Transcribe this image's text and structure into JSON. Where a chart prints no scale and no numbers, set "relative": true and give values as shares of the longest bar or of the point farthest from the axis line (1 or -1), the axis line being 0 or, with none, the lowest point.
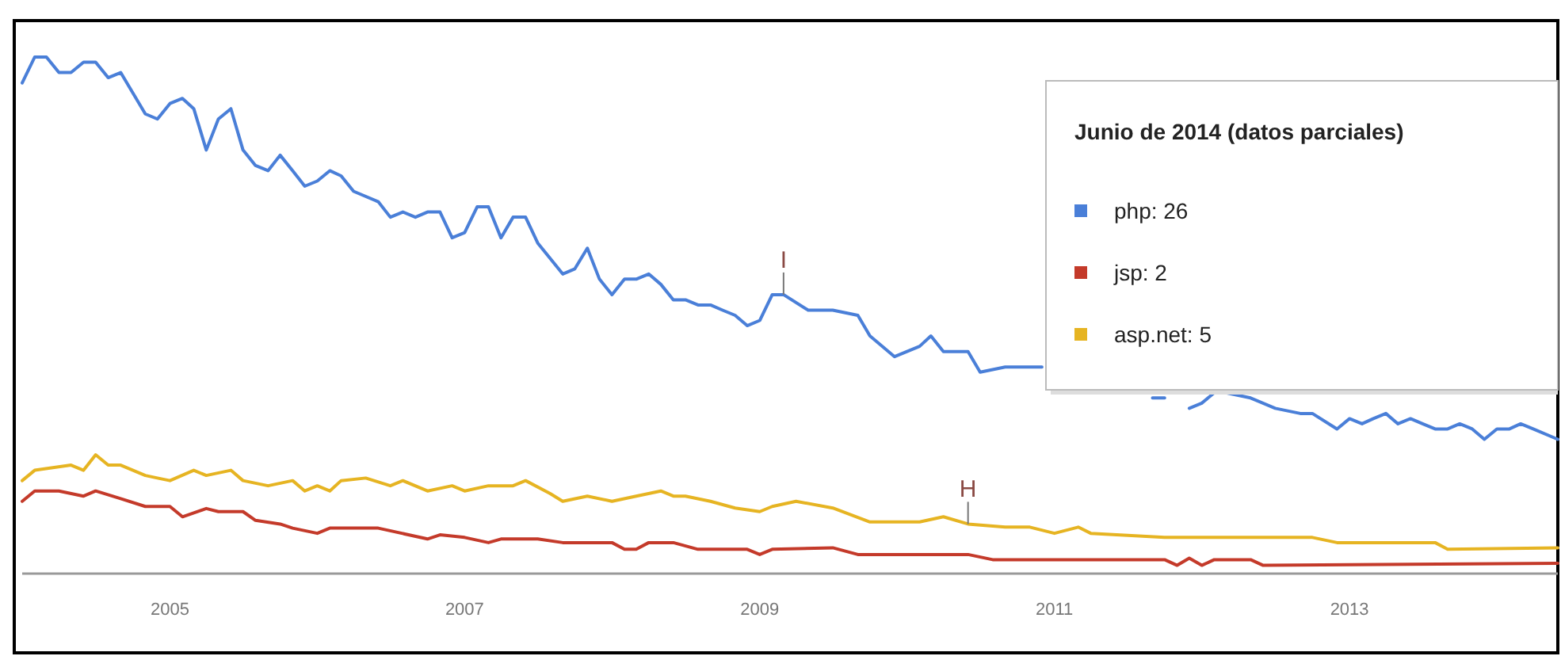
{
  "chart_data": {
    "type": "line",
    "relative": true,
    "legend": "top right",
    "legend_title": "Junio de 2014 (datos parciales)",
    "marker": "none",
    "xlim": [
      "2004-01",
      "2014-06"
    ],
    "xticks": [
      "2005",
      "2007",
      "2009",
      "2011",
      "2013"
    ],
    "series": [
      {
        "name": "php: 26",
        "color": "#4a7fd8",
        "x": [
          "2004-01",
          "2004-02",
          "2004-03",
          "2004-04",
          "2004-05",
          "2004-06",
          "2004-07",
          "2004-08",
          "2004-09",
          "2004-11",
          "2004-12",
          "2005-01",
          "2005-02",
          "2005-03",
          "2005-04",
          "2005-05",
          "2005-06",
          "2005-07",
          "2005-08",
          "2005-09",
          "2005-10",
          "2005-11",
          "2005-12",
          "2006-01",
          "2006-02",
          "2006-03",
          "2006-04",
          "2006-06",
          "2006-07",
          "2006-08",
          "2006-09",
          "2006-10",
          "2006-11",
          "2006-12",
          "2007-01",
          "2007-02",
          "2007-03",
          "2007-04",
          "2007-05",
          "2007-06",
          "2007-07",
          "2007-09",
          "2007-10",
          "2007-11",
          "2007-12",
          "2008-01",
          "2008-02",
          "2008-03",
          "2008-04",
          "2008-05",
          "2008-06",
          "2008-07",
          "2008-08",
          "2008-09",
          "2008-10",
          "2008-11",
          "2008-12",
          "2009-01",
          "2009-02",
          "2009-03",
          "2009-05",
          "2009-07",
          "2009-09",
          "2009-10",
          "2009-12",
          "2010-02",
          "2010-03",
          "2010-04",
          "2010-06",
          "2010-07",
          "2010-09",
          "2010-12",
          "2011-01",
          "2011-09",
          "2011-10",
          "2011-11",
          "2011-12",
          "2012-01",
          "2012-02",
          "2012-03",
          "2012-05",
          "2012-07",
          "2012-09",
          "2012-10",
          "2012-12",
          "2013-01",
          "2013-02",
          "2013-03",
          "2013-04",
          "2013-05",
          "2013-06",
          "2013-07",
          "2013-08",
          "2013-09",
          "2013-10",
          "2013-11",
          "2013-12",
          "2014-01",
          "2014-02",
          "2014-03",
          "2014-04",
          "2014-06"
        ],
        "values": [
          0.95,
          1,
          1,
          0.97,
          0.97,
          0.99,
          0.99,
          0.96,
          0.97,
          0.89,
          0.88,
          0.91,
          0.92,
          0.9,
          0.82,
          0.88,
          0.9,
          0.82,
          0.79,
          0.78,
          0.81,
          0.78,
          0.75,
          0.76,
          0.78,
          0.77,
          0.74,
          0.72,
          0.69,
          0.7,
          0.69,
          0.7,
          0.7,
          0.65,
          0.66,
          0.71,
          0.71,
          0.65,
          0.69,
          0.69,
          0.64,
          0.58,
          0.59,
          0.63,
          0.57,
          0.54,
          0.57,
          0.57,
          0.58,
          0.56,
          0.53,
          0.53,
          0.52,
          0.52,
          0.51,
          0.5,
          0.48,
          0.49,
          0.54,
          0.54,
          0.51,
          0.51,
          0.5,
          0.46,
          0.42,
          0.44,
          0.46,
          0.43,
          0.43,
          0.39,
          0.4,
          0.4,
          null,
          0.34,
          0.34,
          null,
          0.32,
          0.33,
          0.35,
          0.35,
          0.34,
          0.32,
          0.31,
          0.31,
          0.28,
          0.3,
          0.29,
          0.3,
          0.31,
          0.29,
          0.3,
          0.29,
          0.28,
          0.28,
          0.29,
          0.28,
          0.26,
          0.28,
          0.28,
          0.29,
          0.28,
          0.26
        ]
      },
      {
        "name": "jsp: 2",
        "color": "#c43a2a",
        "x": [
          "2004-01",
          "2004-02",
          "2004-04",
          "2004-06",
          "2004-07",
          "2004-09",
          "2004-11",
          "2005-01",
          "2005-02",
          "2005-04",
          "2005-05",
          "2005-07",
          "2005-08",
          "2005-10",
          "2005-11",
          "2006-01",
          "2006-02",
          "2006-06",
          "2006-10",
          "2006-11",
          "2007-01",
          "2007-03",
          "2007-04",
          "2007-07",
          "2007-09",
          "2008-01",
          "2008-02",
          "2008-03",
          "2008-04",
          "2008-06",
          "2008-08",
          "2008-12",
          "2009-01",
          "2009-02",
          "2009-07",
          "2009-09",
          "2010-06",
          "2010-08",
          "2011-10",
          "2011-11",
          "2011-12",
          "2012-01",
          "2012-02",
          "2012-05",
          "2012-06",
          "2014-06"
        ],
        "values": [
          0.14,
          0.16,
          0.16,
          0.15,
          0.16,
          0.145,
          0.13,
          0.13,
          0.11,
          0.126,
          0.12,
          0.12,
          0.103,
          0.096,
          0.088,
          0.078,
          0.088,
          0.088,
          0.067,
          0.075,
          0.07,
          0.06,
          0.067,
          0.067,
          0.06,
          0.06,
          0.047,
          0.047,
          0.06,
          0.06,
          0.047,
          0.047,
          0.037,
          0.047,
          0.05,
          0.037,
          0.037,
          0.027,
          0.027,
          0.016,
          0.03,
          0.016,
          0.027,
          0.027,
          0.016,
          0.02
        ]
      },
      {
        "name": "asp.net: 5",
        "color": "#e6b422",
        "x": [
          "2004-01",
          "2004-02",
          "2004-05",
          "2004-06",
          "2004-07",
          "2004-08",
          "2004-09",
          "2004-11",
          "2004-12",
          "2005-01",
          "2005-03",
          "2005-04",
          "2005-06",
          "2005-07",
          "2005-09",
          "2005-11",
          "2005-12",
          "2006-01",
          "2006-02",
          "2006-03",
          "2006-05",
          "2006-07",
          "2006-08",
          "2006-10",
          "2006-12",
          "2007-01",
          "2007-03",
          "2007-05",
          "2007-06",
          "2007-08",
          "2007-09",
          "2007-11",
          "2008-01",
          "2008-03",
          "2008-05",
          "2008-06",
          "2008-07",
          "2008-09",
          "2008-11",
          "2009-01",
          "2009-02",
          "2009-04",
          "2009-07",
          "2009-10",
          "2010-02",
          "2010-04",
          "2010-06",
          "2010-09",
          "2010-11",
          "2011-01",
          "2011-03",
          "2011-04",
          "2011-10",
          "2012-10",
          "2012-12",
          "2013-08",
          "2013-09",
          "2014-06"
        ],
        "values": [
          0.18,
          0.2,
          0.21,
          0.2,
          0.23,
          0.21,
          0.21,
          0.19,
          0.185,
          0.18,
          0.2,
          0.19,
          0.2,
          0.18,
          0.17,
          0.18,
          0.16,
          0.17,
          0.16,
          0.18,
          0.185,
          0.17,
          0.18,
          0.16,
          0.17,
          0.16,
          0.17,
          0.17,
          0.18,
          0.155,
          0.14,
          0.15,
          0.14,
          0.15,
          0.16,
          0.15,
          0.15,
          0.14,
          0.127,
          0.12,
          0.13,
          0.14,
          0.127,
          0.1,
          0.1,
          0.11,
          0.096,
          0.09,
          0.09,
          0.078,
          0.09,
          0.078,
          0.07,
          0.07,
          0.06,
          0.06,
          0.047,
          0.05
        ]
      }
    ],
    "annotations": [
      {
        "text": "I",
        "x": "2009-03",
        "y": 0.54
      },
      {
        "text": "H",
        "x": "2010-06",
        "y": 0.096
      }
    ]
  }
}
